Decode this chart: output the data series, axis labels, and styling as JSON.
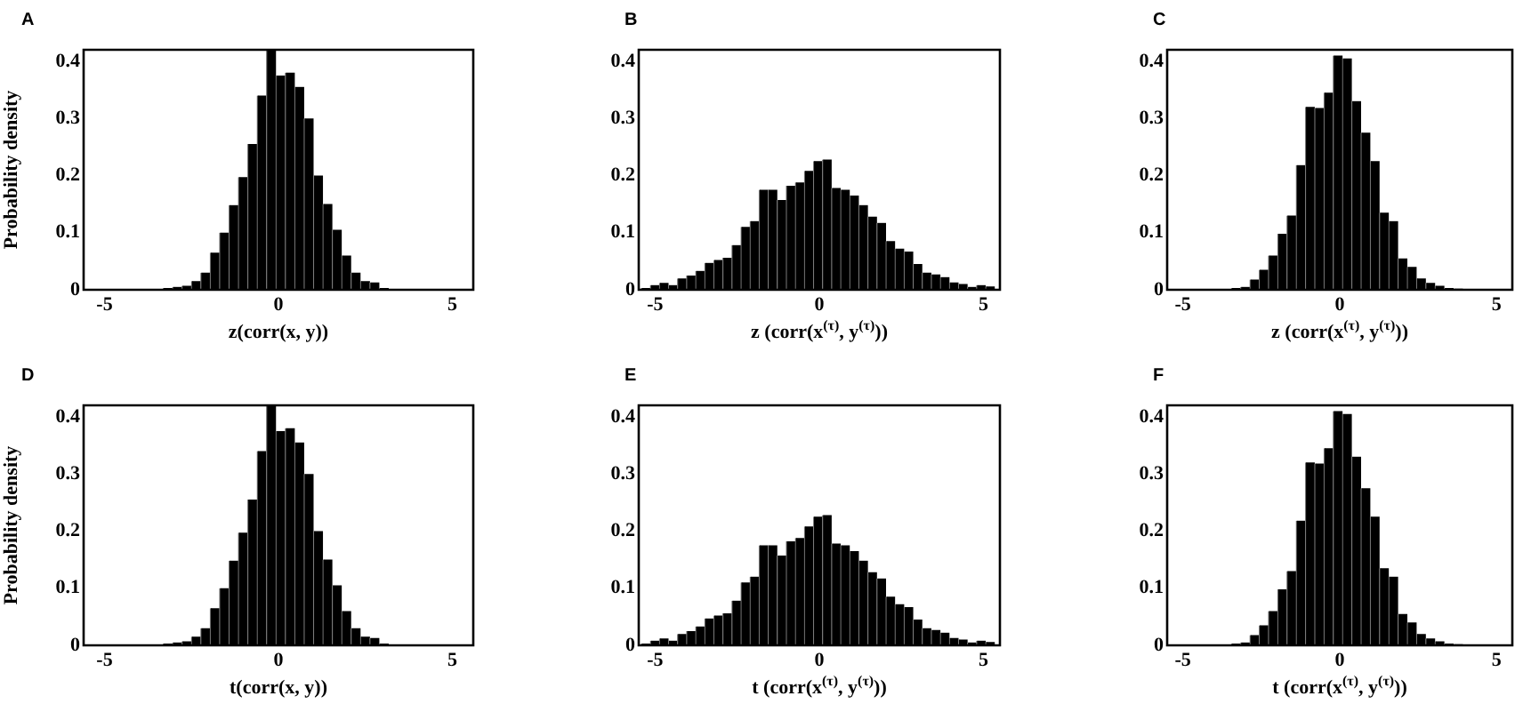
{
  "chart_data": [
    {
      "type": "histogram",
      "title": "A",
      "xlabel": "z(corr(x, y))",
      "ylabel": "Probability density",
      "color": "#000000",
      "grid": false,
      "xlim": [
        -5.6,
        5.6
      ],
      "xticks": [
        -5,
        0,
        5
      ],
      "ylim": [
        0,
        0.42
      ],
      "yticks": [
        0,
        0.1,
        0.2,
        0.3,
        0.4
      ],
      "bins": [
        -3.31,
        -3.04,
        -2.77,
        -2.5,
        -2.23,
        -1.96,
        -1.69,
        -1.42,
        -1.15,
        -0.88,
        -0.61,
        -0.34,
        -0.07,
        0.2,
        0.47,
        0.74,
        1.01,
        1.28,
        1.55,
        1.82,
        2.09,
        2.36,
        2.63,
        2.9,
        3.17
      ],
      "values": [
        0.003,
        0.005,
        0.007,
        0.015,
        0.03,
        0.065,
        0.1,
        0.148,
        0.197,
        0.255,
        0.34,
        0.42,
        0.375,
        0.38,
        0.355,
        0.3,
        0.2,
        0.15,
        0.105,
        0.06,
        0.03,
        0.015,
        0.013,
        0.003
      ]
    },
    {
      "type": "histogram",
      "title": "B",
      "xlabel": "z (corr(x$^{(τ)}$, y$^{(τ)}$))",
      "color": "#000000",
      "grid": false,
      "xlim": [
        -5.5,
        5.5
      ],
      "xticks": [
        -5,
        0,
        5
      ],
      "ylim": [
        0,
        0.42
      ],
      "yticks": [
        0,
        0.1,
        0.2,
        0.3,
        0.4
      ],
      "bins": [
        -5.42,
        -5.144,
        -4.868,
        -4.592,
        -4.316,
        -4.04,
        -3.764,
        -3.488,
        -3.212,
        -2.936,
        -2.66,
        -2.384,
        -2.108,
        -1.832,
        -1.556,
        -1.28,
        -1.004,
        -0.728,
        -0.452,
        -0.176,
        0.1,
        0.376,
        0.652,
        0.928,
        1.204,
        1.48,
        1.756,
        2.032,
        2.308,
        2.584,
        2.86,
        3.136,
        3.412,
        3.688,
        3.964,
        4.24,
        4.516,
        4.792,
        5.068,
        5.344
      ],
      "values": [
        0.003,
        0.008,
        0.012,
        0.008,
        0.02,
        0.025,
        0.033,
        0.047,
        0.052,
        0.056,
        0.078,
        0.11,
        0.12,
        0.175,
        0.175,
        0.157,
        0.182,
        0.188,
        0.208,
        0.225,
        0.228,
        0.178,
        0.175,
        0.165,
        0.148,
        0.128,
        0.117,
        0.085,
        0.072,
        0.067,
        0.045,
        0.03,
        0.027,
        0.022,
        0.013,
        0.01,
        0.005,
        0.008,
        0.006
      ]
    },
    {
      "type": "histogram",
      "title": "C",
      "xlabel": "z (corr(x$^{(τ)}$, y$^{(τ)}$))",
      "color": "#000000",
      "grid": false,
      "xlim": [
        -5.5,
        5.5
      ],
      "xticks": [
        -5,
        0,
        5
      ],
      "ylim": [
        0,
        0.42
      ],
      "yticks": [
        0,
        0.1,
        0.2,
        0.3,
        0.4
      ],
      "bins": [
        -3.45,
        -3.155,
        -2.86,
        -2.565,
        -2.27,
        -1.975,
        -1.68,
        -1.385,
        -1.09,
        -0.795,
        -0.5,
        -0.205,
        0.09,
        0.385,
        0.68,
        0.975,
        1.27,
        1.565,
        1.86,
        2.155,
        2.45,
        2.745,
        3.04,
        3.335,
        3.63,
        3.925
      ],
      "values": [
        0.003,
        0.005,
        0.018,
        0.035,
        0.06,
        0.098,
        0.13,
        0.218,
        0.32,
        0.318,
        0.345,
        0.41,
        0.405,
        0.33,
        0.275,
        0.225,
        0.135,
        0.12,
        0.055,
        0.04,
        0.02,
        0.012,
        0.007,
        0.003,
        0.002
      ]
    },
    {
      "type": "histogram",
      "title": "D",
      "xlabel": "t(corr(x, y))",
      "ylabel": "Probability density",
      "color": "#000000",
      "grid": false,
      "xlim": [
        -5.6,
        5.6
      ],
      "xticks": [
        -5,
        0,
        5
      ],
      "ylim": [
        0,
        0.42
      ],
      "yticks": [
        0,
        0.1,
        0.2,
        0.3,
        0.4
      ],
      "bins": [
        -3.31,
        -3.04,
        -2.77,
        -2.5,
        -2.23,
        -1.96,
        -1.69,
        -1.42,
        -1.15,
        -0.88,
        -0.61,
        -0.34,
        -0.07,
        0.2,
        0.47,
        0.74,
        1.01,
        1.28,
        1.55,
        1.82,
        2.09,
        2.36,
        2.63,
        2.9,
        3.17
      ],
      "values": [
        0.003,
        0.005,
        0.007,
        0.015,
        0.03,
        0.065,
        0.1,
        0.148,
        0.197,
        0.255,
        0.34,
        0.42,
        0.375,
        0.38,
        0.355,
        0.3,
        0.2,
        0.15,
        0.105,
        0.06,
        0.03,
        0.015,
        0.013,
        0.003
      ]
    },
    {
      "type": "histogram",
      "title": "E",
      "xlabel": "t (corr(x$^{(τ)}$, y$^{(τ)}$))",
      "color": "#000000",
      "grid": false,
      "xlim": [
        -5.5,
        5.5
      ],
      "xticks": [
        -5,
        0,
        5
      ],
      "ylim": [
        0,
        0.42
      ],
      "yticks": [
        0,
        0.1,
        0.2,
        0.3,
        0.4
      ],
      "bins": [
        -5.42,
        -5.144,
        -4.868,
        -4.592,
        -4.316,
        -4.04,
        -3.764,
        -3.488,
        -3.212,
        -2.936,
        -2.66,
        -2.384,
        -2.108,
        -1.832,
        -1.556,
        -1.28,
        -1.004,
        -0.728,
        -0.452,
        -0.176,
        0.1,
        0.376,
        0.652,
        0.928,
        1.204,
        1.48,
        1.756,
        2.032,
        2.308,
        2.584,
        2.86,
        3.136,
        3.412,
        3.688,
        3.964,
        4.24,
        4.516,
        4.792,
        5.068,
        5.344
      ],
      "values": [
        0.003,
        0.008,
        0.012,
        0.008,
        0.02,
        0.025,
        0.033,
        0.047,
        0.052,
        0.056,
        0.078,
        0.11,
        0.12,
        0.175,
        0.175,
        0.157,
        0.182,
        0.188,
        0.208,
        0.225,
        0.228,
        0.178,
        0.175,
        0.165,
        0.148,
        0.128,
        0.117,
        0.085,
        0.072,
        0.067,
        0.045,
        0.03,
        0.027,
        0.022,
        0.013,
        0.01,
        0.005,
        0.008,
        0.006
      ]
    },
    {
      "type": "histogram",
      "title": "F",
      "xlabel": "t (corr(x$^{(τ)}$, y$^{(τ)}$))",
      "color": "#000000",
      "grid": false,
      "xlim": [
        -5.5,
        5.5
      ],
      "xticks": [
        -5,
        0,
        5
      ],
      "ylim": [
        0,
        0.42
      ],
      "yticks": [
        0,
        0.1,
        0.2,
        0.3,
        0.4
      ],
      "bins": [
        -3.45,
        -3.155,
        -2.86,
        -2.565,
        -2.27,
        -1.975,
        -1.68,
        -1.385,
        -1.09,
        -0.795,
        -0.5,
        -0.205,
        0.09,
        0.385,
        0.68,
        0.975,
        1.27,
        1.565,
        1.86,
        2.155,
        2.45,
        2.745,
        3.04,
        3.335,
        3.63,
        3.925
      ],
      "values": [
        0.003,
        0.005,
        0.018,
        0.035,
        0.06,
        0.098,
        0.13,
        0.218,
        0.32,
        0.318,
        0.345,
        0.41,
        0.405,
        0.33,
        0.275,
        0.225,
        0.135,
        0.12,
        0.055,
        0.04,
        0.02,
        0.012,
        0.007,
        0.003,
        0.002
      ]
    }
  ]
}
